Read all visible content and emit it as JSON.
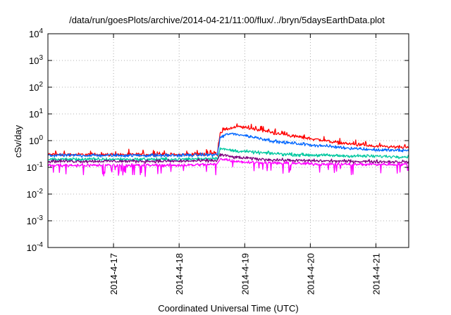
{
  "chart_data": {
    "type": "line",
    "title": "/data/run/goesPlots/archive/2014-04-21/11:00/flux/../bryn/5daysEarthData.plot",
    "xlabel": "Coordinated Universal Time (UTC)",
    "ylabel": "cSv/day",
    "yscale": "log",
    "ylim_exp": [
      -4,
      4
    ],
    "ytick_exponents": [
      -4,
      -3,
      -2,
      -1,
      0,
      1,
      2,
      3,
      4
    ],
    "ytick_base": "10",
    "xlim": [
      "2014-04-16 00:00",
      "2014-04-21 12:00"
    ],
    "xticks": [
      "2014-4-17",
      "2014-4-18",
      "2014-4-19",
      "2014-4-20",
      "2014-4-21"
    ],
    "xtick_dates": [
      "2014-04-17 00:00",
      "2014-04-18 00:00",
      "2014-04-19 00:00",
      "2014-04-20 00:00",
      "2014-04-21 00:00"
    ],
    "grid": true,
    "legend": "none",
    "series": [
      {
        "color": "#ff0000",
        "x": [
          "2014-04-16 00:00",
          "2014-04-17 00:00",
          "2014-04-18 00:00",
          "2014-04-18 14:00",
          "2014-04-18 15:00",
          "2014-04-18 18:00",
          "2014-04-18 22:00",
          "2014-04-19 06:00",
          "2014-04-19 12:00",
          "2014-04-20 00:00",
          "2014-04-20 12:00",
          "2014-04-21 00:00",
          "2014-04-21 12:00"
        ],
        "y": [
          0.3,
          0.3,
          0.3,
          0.32,
          2.0,
          2.8,
          3.3,
          2.5,
          1.8,
          1.2,
          0.8,
          0.6,
          0.55
        ]
      },
      {
        "color": "#0066ff",
        "x": [
          "2014-04-16 00:00",
          "2014-04-17 00:00",
          "2014-04-18 00:00",
          "2014-04-18 14:00",
          "2014-04-18 15:00",
          "2014-04-18 18:00",
          "2014-04-18 22:00",
          "2014-04-19 06:00",
          "2014-04-19 12:00",
          "2014-04-20 00:00",
          "2014-04-20 12:00",
          "2014-04-21 00:00",
          "2014-04-21 12:00"
        ],
        "y": [
          0.28,
          0.28,
          0.28,
          0.3,
          1.3,
          1.8,
          1.7,
          1.2,
          0.9,
          0.7,
          0.55,
          0.45,
          0.42
        ]
      },
      {
        "color": "#00c8a0",
        "x": [
          "2014-04-16 00:00",
          "2014-04-17 00:00",
          "2014-04-18 00:00",
          "2014-04-18 14:00",
          "2014-04-18 15:00",
          "2014-04-18 20:00",
          "2014-04-19 06:00",
          "2014-04-19 18:00",
          "2014-04-20 12:00",
          "2014-04-21 12:00"
        ],
        "y": [
          0.2,
          0.2,
          0.2,
          0.22,
          0.5,
          0.42,
          0.35,
          0.3,
          0.27,
          0.25
        ]
      },
      {
        "color": "#800080",
        "x": [
          "2014-04-16 00:00",
          "2014-04-17 00:00",
          "2014-04-18 00:00",
          "2014-04-18 14:00",
          "2014-04-18 15:00",
          "2014-04-18 20:00",
          "2014-04-19 06:00",
          "2014-04-19 18:00",
          "2014-04-20 12:00",
          "2014-04-21 12:00"
        ],
        "y": [
          0.17,
          0.17,
          0.17,
          0.18,
          0.3,
          0.24,
          0.2,
          0.18,
          0.17,
          0.16
        ]
      },
      {
        "color": "#ff00ff",
        "x": [
          "2014-04-16 00:00",
          "2014-04-17 00:00",
          "2014-04-18 00:00",
          "2014-04-18 14:00",
          "2014-04-18 15:00",
          "2014-04-18 20:00",
          "2014-04-19 06:00",
          "2014-04-19 18:00",
          "2014-04-20 12:00",
          "2014-04-21 12:00"
        ],
        "y": [
          0.12,
          0.12,
          0.12,
          0.13,
          0.22,
          0.17,
          0.15,
          0.14,
          0.13,
          0.13
        ]
      }
    ]
  }
}
